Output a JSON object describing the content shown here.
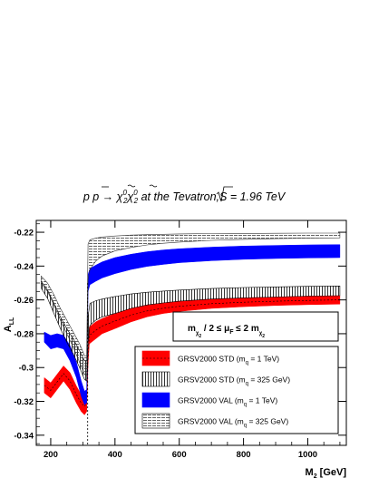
{
  "chart_data": {
    "type": "area",
    "title_parts": {
      "lead": "p ",
      "pbar": "p",
      "arrow": " → ",
      "chi": "χ",
      "tilde": "~",
      "sup": "0",
      "sub": "2",
      "rest": " at the Tevatron,",
      "sqrt_s": "S",
      "energy": " = 1.96 TeV"
    },
    "xlabel_main": "M",
    "xlabel_sub": "2",
    "xlabel_unit": " [GeV]",
    "ylabel_main": "A",
    "ylabel_sub": "LL",
    "xlim": [
      155,
      1120
    ],
    "ylim": [
      -0.346,
      -0.213
    ],
    "x_ticks": [
      200,
      400,
      600,
      800,
      1000
    ],
    "x_tick_labels": [
      "200",
      "400",
      "600",
      "800",
      "1000"
    ],
    "y_ticks": [
      -0.22,
      -0.24,
      -0.26,
      -0.28,
      -0.3,
      -0.32,
      -0.34
    ],
    "y_tick_labels": [
      "-0.22",
      "-0.24",
      "-0.26",
      "-0.28",
      "-0.3",
      "-0.32",
      "-0.34"
    ],
    "threshold_x": 315,
    "scale_box": {
      "m": "m",
      "chi_sub": "χ",
      "chi_subsub": "2",
      "chi_sup": "0",
      "mid": " / 2 ≤ μ",
      "f": "F",
      "end": " ≤ 2 m"
    },
    "series": [
      {
        "name": "GRSV2000 STD (m",
        "name_sub": "q",
        "name_end": " = 1 TeV)",
        "style": "solid",
        "color": "#ff0000",
        "dash": true,
        "x": [
          180,
          200,
          220,
          240,
          260,
          280,
          295,
          305,
          312,
          316,
          320,
          340,
          360,
          400,
          450,
          500,
          550,
          600,
          700,
          800,
          900,
          1000,
          1100
        ],
        "upper": [
          -0.306,
          -0.309,
          -0.304,
          -0.299,
          -0.303,
          -0.311,
          -0.316,
          -0.318,
          -0.316,
          -0.29,
          -0.276,
          -0.273,
          -0.271,
          -0.268,
          -0.265,
          -0.263,
          -0.2618,
          -0.2608,
          -0.2595,
          -0.2588,
          -0.2583,
          -0.2578,
          -0.2575
        ],
        "lower": [
          -0.315,
          -0.318,
          -0.313,
          -0.308,
          -0.313,
          -0.321,
          -0.326,
          -0.328,
          -0.326,
          -0.298,
          -0.286,
          -0.283,
          -0.28,
          -0.277,
          -0.273,
          -0.27,
          -0.268,
          -0.2668,
          -0.265,
          -0.264,
          -0.2633,
          -0.2628,
          -0.2625
        ]
      },
      {
        "name": "GRSV2000 STD (m",
        "name_sub": "q",
        "name_end": " = 325 GeV)",
        "style": "vhatch",
        "color": "#000000",
        "x": [
          170,
          190,
          210,
          230,
          250,
          270,
          290,
          305,
          312,
          316,
          322,
          340,
          360,
          400,
          450,
          500,
          550,
          600,
          700,
          800,
          900,
          1000,
          1100
        ],
        "upper": [
          -0.249,
          -0.254,
          -0.262,
          -0.27,
          -0.277,
          -0.283,
          -0.29,
          -0.296,
          -0.296,
          -0.27,
          -0.262,
          -0.2605,
          -0.2595,
          -0.258,
          -0.2565,
          -0.2555,
          -0.2548,
          -0.2542,
          -0.2533,
          -0.2527,
          -0.2523,
          -0.252,
          -0.2518
        ],
        "lower": [
          -0.253,
          -0.259,
          -0.268,
          -0.277,
          -0.285,
          -0.292,
          -0.3,
          -0.307,
          -0.308,
          -0.285,
          -0.275,
          -0.272,
          -0.27,
          -0.268,
          -0.265,
          -0.263,
          -0.2618,
          -0.2608,
          -0.2595,
          -0.2588,
          -0.2583,
          -0.2578,
          -0.2575
        ]
      },
      {
        "name": "GRSV2000 VAL (m",
        "name_sub": "q",
        "name_end": " = 1 TeV)",
        "style": "solid",
        "color": "#0000ff",
        "x": [
          180,
          200,
          220,
          240,
          260,
          280,
          295,
          305,
          312,
          316,
          322,
          340,
          360,
          400,
          450,
          500,
          550,
          600,
          700,
          800,
          900,
          1000,
          1100
        ],
        "upper": [
          -0.279,
          -0.281,
          -0.28,
          -0.281,
          -0.287,
          -0.297,
          -0.308,
          -0.314,
          -0.313,
          -0.245,
          -0.2415,
          -0.2395,
          -0.2375,
          -0.235,
          -0.233,
          -0.2315,
          -0.2305,
          -0.2298,
          -0.2288,
          -0.2282,
          -0.2278,
          -0.2275,
          -0.2273
        ],
        "lower": [
          -0.285,
          -0.289,
          -0.288,
          -0.289,
          -0.296,
          -0.306,
          -0.317,
          -0.322,
          -0.321,
          -0.255,
          -0.251,
          -0.249,
          -0.247,
          -0.2445,
          -0.242,
          -0.2402,
          -0.239,
          -0.238,
          -0.2368,
          -0.236,
          -0.2355,
          -0.2352,
          -0.235
        ]
      },
      {
        "name": "GRSV2000 VAL (m",
        "name_sub": "q",
        "name_end": " = 325 GeV)",
        "style": "hatch",
        "color": "#333333",
        "x": [
          170,
          190,
          210,
          230,
          250,
          270,
          290,
          305,
          312,
          316,
          322,
          340,
          360,
          400,
          450,
          500,
          550,
          600,
          700,
          800,
          900,
          1000,
          1100
        ],
        "upper": [
          -0.246,
          -0.25,
          -0.257,
          -0.265,
          -0.272,
          -0.279,
          -0.286,
          -0.293,
          -0.293,
          -0.227,
          -0.2245,
          -0.2235,
          -0.2228,
          -0.2222,
          -0.2217,
          -0.2214,
          -0.2212,
          -0.221,
          -0.2208,
          -0.2207,
          -0.2206,
          -0.2205,
          -0.2205
        ],
        "lower": [
          -0.25,
          -0.255,
          -0.263,
          -0.272,
          -0.28,
          -0.288,
          -0.297,
          -0.304,
          -0.305,
          -0.248,
          -0.242,
          -0.237,
          -0.234,
          -0.231,
          -0.229,
          -0.2275,
          -0.2265,
          -0.2258,
          -0.2248,
          -0.2242,
          -0.2238,
          -0.2235,
          -0.2233
        ]
      }
    ]
  }
}
